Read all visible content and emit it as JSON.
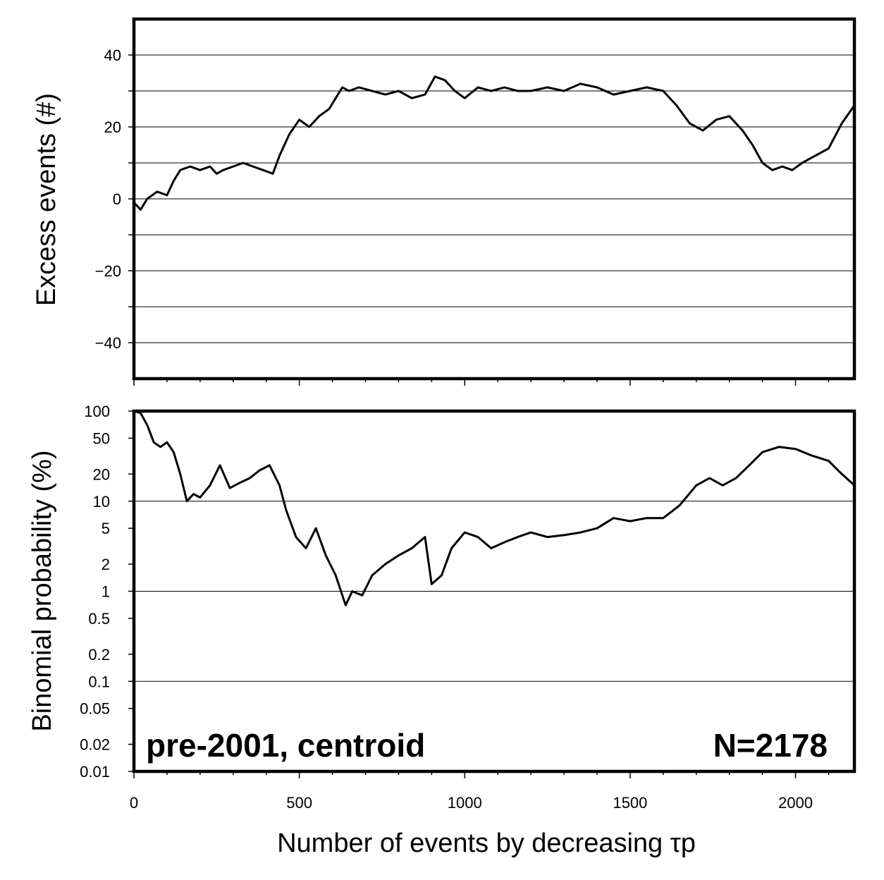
{
  "chart_data": [
    {
      "type": "line",
      "ylabel": "Excess events (#)",
      "xlim": [
        0,
        2178
      ],
      "ylim": [
        -50,
        50
      ],
      "yticks": [
        40,
        20,
        0,
        -20,
        -40
      ],
      "ytick_labels": [
        "40",
        "20",
        "0",
        "−20",
        "−40"
      ],
      "grid": true,
      "series": [
        {
          "x": [
            0,
            20,
            40,
            70,
            100,
            120,
            140,
            170,
            200,
            230,
            250,
            270,
            300,
            330,
            360,
            390,
            420,
            440,
            470,
            500,
            530,
            560,
            590,
            610,
            630,
            650,
            680,
            720,
            760,
            800,
            840,
            880,
            910,
            940,
            970,
            1000,
            1040,
            1080,
            1120,
            1160,
            1200,
            1250,
            1300,
            1350,
            1400,
            1450,
            1500,
            1550,
            1600,
            1640,
            1680,
            1720,
            1760,
            1800,
            1840,
            1870,
            1900,
            1930,
            1960,
            1990,
            2020,
            2060,
            2100,
            2140,
            2178
          ],
          "y": [
            -1,
            -3,
            0,
            2,
            1,
            5,
            8,
            9,
            8,
            9,
            7,
            8,
            9,
            10,
            9,
            8,
            7,
            12,
            18,
            22,
            20,
            23,
            25,
            28,
            31,
            30,
            31,
            30,
            29,
            30,
            28,
            29,
            34,
            33,
            30,
            28,
            31,
            30,
            31,
            30,
            30,
            31,
            30,
            32,
            31,
            29,
            30,
            31,
            30,
            26,
            21,
            19,
            22,
            23,
            19,
            15,
            10,
            8,
            9,
            8,
            10,
            12,
            14,
            21,
            26
          ]
        }
      ]
    },
    {
      "type": "line",
      "xlabel": "Number of events by decreasing τp",
      "ylabel": "Binomial probability (%)",
      "xlim": [
        0,
        2178
      ],
      "ylim": [
        0.01,
        100
      ],
      "yscale": "log",
      "yticks": [
        100,
        50,
        20,
        10,
        5,
        2,
        1,
        0.5,
        0.2,
        0.1,
        0.05,
        0.02,
        0.01
      ],
      "ytick_labels": [
        "100",
        "50",
        "20",
        "10",
        "5",
        "2",
        "1",
        "0.5",
        "0.2",
        "0.1",
        "0.05",
        "0.02",
        "0.01"
      ],
      "xticks": [
        0,
        500,
        1000,
        1500,
        2000
      ],
      "xtick_labels": [
        "0",
        "500",
        "1000",
        "1500",
        "2000"
      ],
      "grid": true,
      "annotations": [
        "pre-2001, centroid",
        "N=2178"
      ],
      "series": [
        {
          "x": [
            0,
            20,
            40,
            60,
            80,
            100,
            120,
            140,
            160,
            180,
            200,
            230,
            260,
            290,
            320,
            350,
            380,
            410,
            440,
            460,
            490,
            520,
            550,
            580,
            610,
            640,
            660,
            690,
            720,
            760,
            800,
            840,
            880,
            900,
            930,
            960,
            1000,
            1040,
            1080,
            1120,
            1160,
            1200,
            1250,
            1300,
            1350,
            1400,
            1450,
            1500,
            1550,
            1600,
            1650,
            1700,
            1740,
            1780,
            1820,
            1860,
            1900,
            1950,
            2000,
            2050,
            2100,
            2140,
            2178
          ],
          "y": [
            100,
            95,
            70,
            45,
            40,
            45,
            35,
            20,
            10,
            12,
            11,
            15,
            25,
            14,
            16,
            18,
            22,
            25,
            15,
            8,
            4,
            3,
            5,
            2.5,
            1.5,
            0.7,
            1,
            0.9,
            1.5,
            2,
            2.5,
            3,
            4,
            1.2,
            1.5,
            3,
            4.5,
            4,
            3,
            3.5,
            4,
            4.5,
            4,
            4.2,
            4.5,
            5,
            6.5,
            6,
            6.5,
            6.5,
            9,
            15,
            18,
            15,
            18,
            25,
            35,
            40,
            38,
            32,
            28,
            20,
            15
          ]
        }
      ]
    }
  ]
}
